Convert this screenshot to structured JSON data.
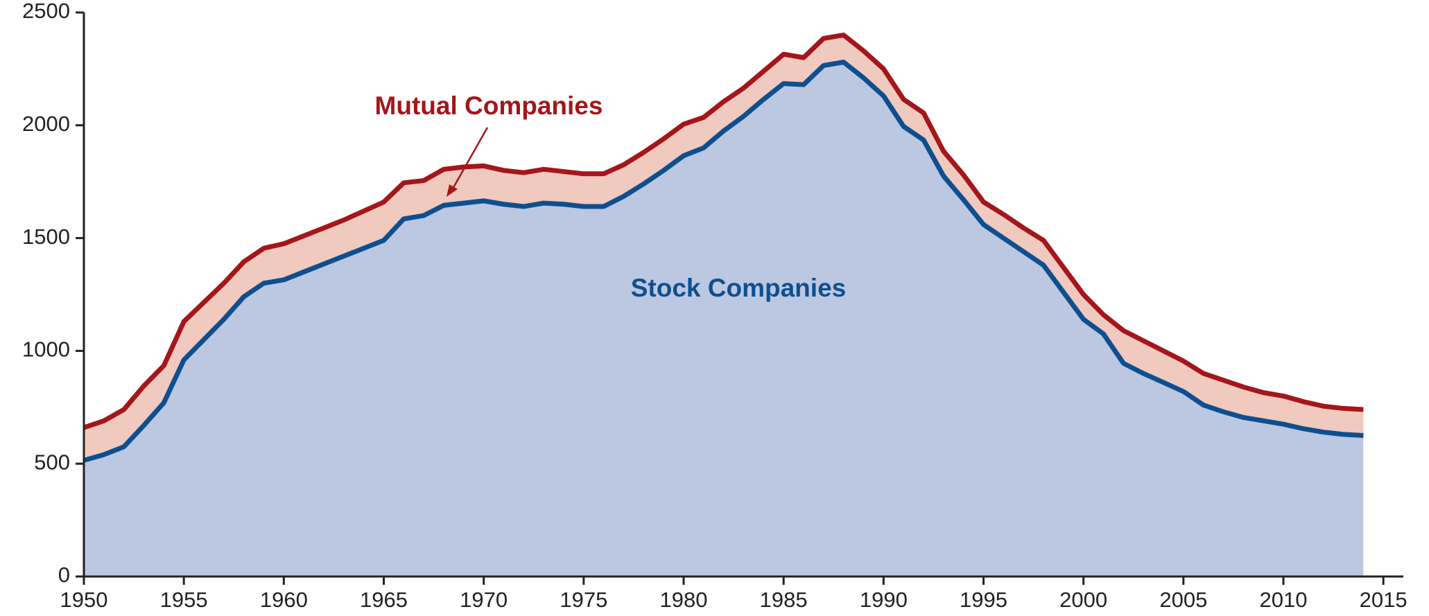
{
  "chart_data": {
    "type": "stacked-area",
    "x": [
      1950,
      1951,
      1952,
      1953,
      1954,
      1955,
      1956,
      1957,
      1958,
      1959,
      1960,
      1961,
      1962,
      1963,
      1964,
      1965,
      1966,
      1967,
      1968,
      1969,
      1970,
      1971,
      1972,
      1973,
      1974,
      1975,
      1976,
      1977,
      1978,
      1979,
      1980,
      1981,
      1982,
      1983,
      1984,
      1985,
      1986,
      1987,
      1988,
      1989,
      1990,
      1991,
      1992,
      1993,
      1994,
      1995,
      1996,
      1997,
      1998,
      1999,
      2000,
      2001,
      2002,
      2003,
      2004,
      2005,
      2006,
      2007,
      2008,
      2009,
      2010,
      2011,
      2012,
      2013,
      2014
    ],
    "series": [
      {
        "name": "Stock Companies",
        "color": "#0e4f8f",
        "fill": "#bcc7e2",
        "values": [
          515,
          540,
          575,
          670,
          770,
          960,
          1050,
          1140,
          1240,
          1300,
          1315,
          1350,
          1385,
          1420,
          1455,
          1490,
          1585,
          1600,
          1645,
          1655,
          1665,
          1650,
          1640,
          1655,
          1650,
          1640,
          1640,
          1685,
          1740,
          1800,
          1865,
          1900,
          1975,
          2040,
          2115,
          2185,
          2180,
          2265,
          2280,
          2210,
          2130,
          1995,
          1935,
          1775,
          1670,
          1560,
          1500,
          1440,
          1380,
          1260,
          1140,
          1075,
          945,
          900,
          860,
          820,
          760,
          730,
          705,
          690,
          675,
          655,
          640,
          630,
          625
        ]
      },
      {
        "name": "Mutual Companies",
        "color": "#a4161a",
        "fill": "#f0c9bf",
        "values": [
          145,
          150,
          165,
          175,
          165,
          170,
          165,
          160,
          155,
          155,
          160,
          160,
          160,
          160,
          165,
          170,
          160,
          155,
          160,
          160,
          155,
          150,
          150,
          150,
          145,
          145,
          145,
          140,
          140,
          140,
          140,
          135,
          130,
          125,
          125,
          130,
          120,
          120,
          120,
          120,
          120,
          120,
          120,
          110,
          110,
          100,
          105,
          105,
          110,
          110,
          110,
          85,
          145,
          145,
          140,
          135,
          140,
          140,
          135,
          125,
          125,
          120,
          115,
          115,
          115
        ]
      }
    ],
    "xlim": [
      1950,
      2016
    ],
    "xticks": [
      1950,
      1955,
      1960,
      1965,
      1970,
      1975,
      1980,
      1985,
      1990,
      1995,
      2000,
      2005,
      2010,
      2015
    ],
    "ylim": [
      0,
      2500
    ],
    "yticks": [
      0,
      500,
      1000,
      1500,
      2000,
      2500
    ]
  }
}
